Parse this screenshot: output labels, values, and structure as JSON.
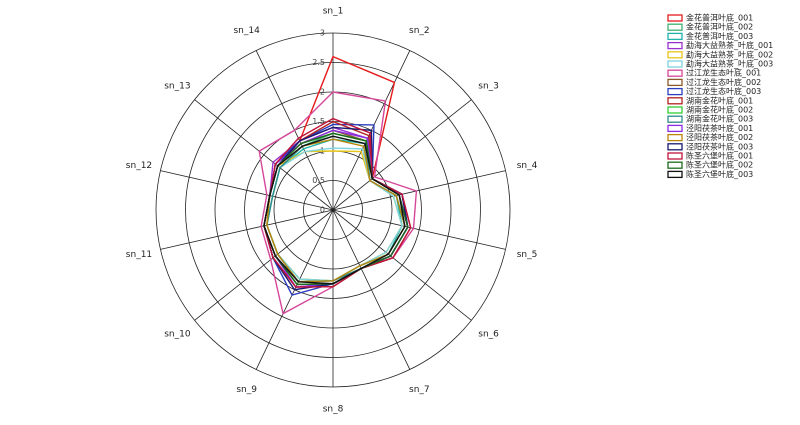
{
  "chart_data": {
    "type": "radar",
    "categories": [
      "sn_1",
      "sn_2",
      "sn_3",
      "sn_4",
      "sn_5",
      "sn_6",
      "sn_7",
      "sn_8",
      "sn_9",
      "sn_10",
      "sn_11",
      "sn_12",
      "sn_13",
      "sn_14"
    ],
    "rlim": [
      0,
      3
    ],
    "rticks": [
      0,
      0.5,
      1,
      1.5,
      2,
      2.5,
      3
    ],
    "series": [
      {
        "name": "金花普洱叶底_001",
        "color": "#e41a1c",
        "values": [
          2.6,
          2.4,
          0.85,
          1.15,
          1.3,
          1.25,
          1.1,
          1.25,
          1.4,
          1.25,
          1.2,
          1.1,
          1.25,
          1.3
        ]
      },
      {
        "name": "金花普洱叶底_002",
        "color": "#3cb371",
        "values": [
          1.3,
          1.3,
          0.8,
          1.1,
          1.25,
          1.2,
          1.1,
          1.2,
          1.35,
          1.2,
          1.15,
          1.05,
          1.15,
          1.2
        ]
      },
      {
        "name": "金花普洱叶底_003",
        "color": "#20b2aa",
        "values": [
          1.2,
          1.25,
          0.8,
          1.1,
          1.2,
          1.2,
          1.05,
          1.2,
          1.3,
          1.2,
          1.15,
          1.05,
          1.15,
          1.15
        ]
      },
      {
        "name": "勐海大益熟茶_叶底_001",
        "color": "#9932cc",
        "values": [
          1.4,
          1.35,
          0.85,
          1.2,
          1.3,
          1.25,
          1.1,
          1.25,
          1.45,
          1.3,
          1.2,
          1.1,
          1.3,
          1.3
        ]
      },
      {
        "name": "勐海大益熟茶_叶底_002",
        "color": "#e6c619",
        "values": [
          1.0,
          1.1,
          0.8,
          1.05,
          1.2,
          1.15,
          1.05,
          1.2,
          1.3,
          1.2,
          1.15,
          1.1,
          1.2,
          1.1
        ]
      },
      {
        "name": "勐海大益熟茶_叶底_003",
        "color": "#7fd4e0",
        "values": [
          1.05,
          1.15,
          0.8,
          1.05,
          1.2,
          1.15,
          1.05,
          1.2,
          1.3,
          1.2,
          1.15,
          1.05,
          1.15,
          1.1
        ]
      },
      {
        "name": "过江龙生态叶底_001",
        "color": "#d6479a",
        "values": [
          2.0,
          2.05,
          0.9,
          1.45,
          1.4,
          1.3,
          1.1,
          1.3,
          1.95,
          1.35,
          1.25,
          1.15,
          1.6,
          1.5
        ]
      },
      {
        "name": "过江龙生态叶底_002",
        "color": "#8b5a2b",
        "values": [
          1.35,
          1.3,
          0.85,
          1.15,
          1.3,
          1.25,
          1.1,
          1.25,
          1.4,
          1.25,
          1.2,
          1.1,
          1.2,
          1.25
        ]
      },
      {
        "name": "过江龙生态叶底_003",
        "color": "#2b3fbf",
        "values": [
          1.45,
          1.6,
          0.85,
          1.2,
          1.3,
          1.25,
          1.1,
          1.25,
          1.6,
          1.3,
          1.2,
          1.1,
          1.25,
          1.3
        ]
      },
      {
        "name": "湖南金花叶底_001",
        "color": "#b22222",
        "values": [
          1.5,
          1.4,
          0.85,
          1.2,
          1.35,
          1.3,
          1.1,
          1.3,
          1.45,
          1.3,
          1.2,
          1.1,
          1.2,
          1.3
        ]
      },
      {
        "name": "湖南金花叶底_002",
        "color": "#32cd32",
        "values": [
          1.3,
          1.3,
          0.85,
          1.15,
          1.3,
          1.25,
          1.1,
          1.25,
          1.4,
          1.25,
          1.2,
          1.1,
          1.2,
          1.25
        ]
      },
      {
        "name": "湖南金花叶底_003",
        "color": "#2e8b8b",
        "values": [
          1.25,
          1.25,
          0.8,
          1.1,
          1.25,
          1.2,
          1.1,
          1.2,
          1.35,
          1.2,
          1.15,
          1.05,
          1.15,
          1.2
        ]
      },
      {
        "name": "泾阳茯茶叶底_001",
        "color": "#8a2be2",
        "values": [
          1.35,
          1.35,
          0.85,
          1.15,
          1.3,
          1.25,
          1.1,
          1.25,
          1.45,
          1.25,
          1.2,
          1.1,
          1.25,
          1.25
        ]
      },
      {
        "name": "泾阳茯茶叶底_002",
        "color": "#b8860b",
        "values": [
          1.2,
          1.2,
          0.8,
          1.1,
          1.25,
          1.2,
          1.05,
          1.2,
          1.35,
          1.2,
          1.15,
          1.1,
          1.2,
          1.2
        ]
      },
      {
        "name": "泾阳茯茶叶底_003",
        "color": "#191970",
        "values": [
          1.4,
          1.5,
          0.85,
          1.2,
          1.3,
          1.25,
          1.1,
          1.25,
          1.5,
          1.3,
          1.2,
          1.1,
          1.2,
          1.3
        ]
      },
      {
        "name": "陈圣六堡叶底_001",
        "color": "#c0143c",
        "values": [
          1.55,
          1.45,
          0.85,
          1.2,
          1.35,
          1.3,
          1.1,
          1.3,
          1.45,
          1.3,
          1.2,
          1.1,
          1.25,
          1.35
        ]
      },
      {
        "name": "陈圣六堡叶底_002",
        "color": "#1e6b1e",
        "values": [
          1.3,
          1.3,
          0.85,
          1.15,
          1.3,
          1.25,
          1.1,
          1.25,
          1.4,
          1.25,
          1.2,
          1.1,
          1.2,
          1.25
        ]
      },
      {
        "name": "陈圣六堡叶底_003",
        "color": "#111111",
        "values": [
          1.25,
          1.25,
          0.85,
          1.15,
          1.25,
          1.2,
          1.1,
          1.25,
          1.35,
          1.25,
          1.2,
          1.1,
          1.2,
          1.2
        ]
      }
    ]
  }
}
